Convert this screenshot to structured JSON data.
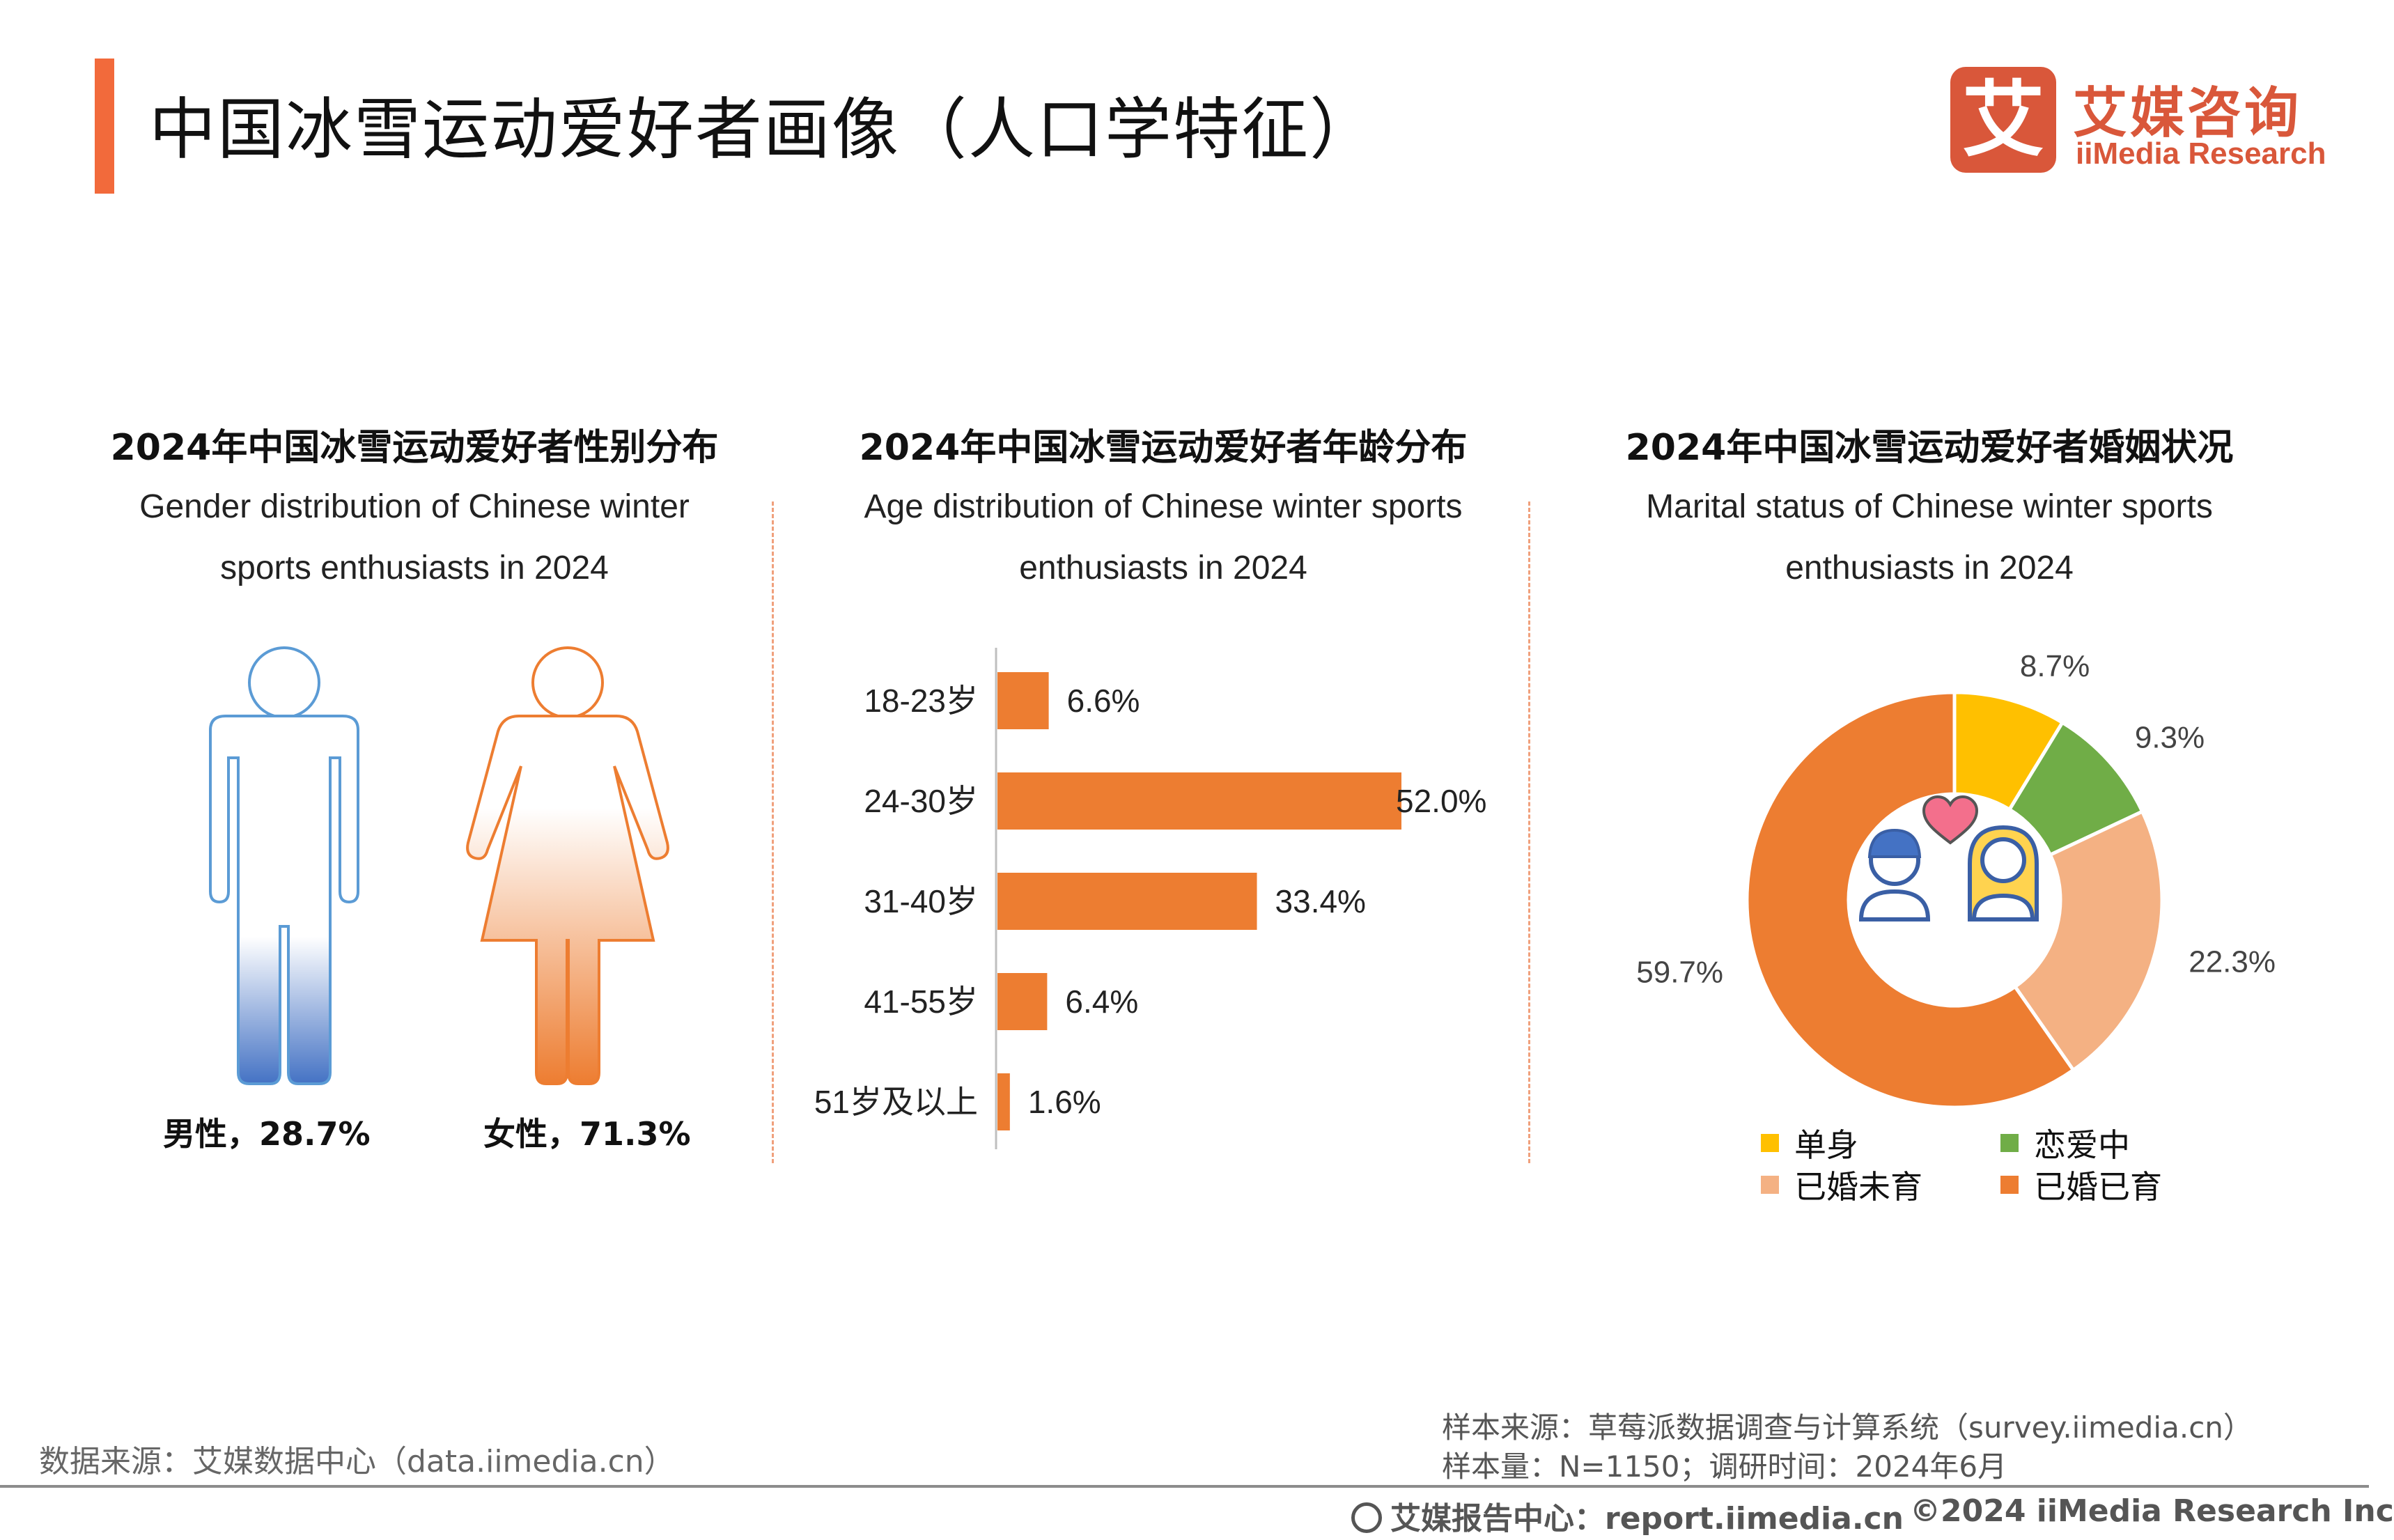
{
  "page": {
    "title": "中国冰雪运动爱好者画像（人口学特征）"
  },
  "logo": {
    "mark": "艾",
    "cn": "艾媒咨询",
    "en": "iiMedia Research"
  },
  "colors": {
    "accent": "#f26a3b",
    "bar": "#ed7d31",
    "male": "#4472c4",
    "single": "#ffc000",
    "in_love": "#70ad47",
    "married_no_child": "#f4b183",
    "married_child": "#ed7d31"
  },
  "panels": {
    "gender": {
      "title": "2024年中国冰雪运动爱好者性别分布",
      "subtitle1": "Gender distribution of Chinese winter",
      "subtitle2": "sports enthusiasts in 2024",
      "male_label": "男性，28.7%",
      "female_label": "女性，71.3%"
    },
    "age": {
      "title": "2024年中国冰雪运动爱好者年龄分布",
      "subtitle1": "Age distribution of Chinese winter sports",
      "subtitle2": "enthusiasts in 2024"
    },
    "marital": {
      "title": "2024年中国冰雪运动爱好者婚姻状况",
      "subtitle1": "Marital status of Chinese winter sports",
      "subtitle2": "enthusiasts in 2024"
    }
  },
  "chart_data": [
    {
      "type": "pictogram",
      "categories": [
        "男性",
        "女性"
      ],
      "values": [
        28.7,
        71.3
      ],
      "unit": "%"
    },
    {
      "type": "bar",
      "orientation": "horizontal",
      "categories": [
        "18-23岁",
        "24-30岁",
        "31-40岁",
        "41-55岁",
        "51岁及以上"
      ],
      "values": [
        6.6,
        52.0,
        33.4,
        6.4,
        1.6
      ],
      "labels": [
        "6.6%",
        "52.0%",
        "33.4%",
        "6.4%",
        "1.6%"
      ],
      "xlim": [
        0,
        52
      ]
    },
    {
      "type": "pie",
      "donut": true,
      "categories": [
        "单身",
        "恋爱中",
        "已婚未育",
        "已婚已育"
      ],
      "values": [
        8.7,
        9.3,
        22.3,
        59.7
      ],
      "labels": [
        "8.7%",
        "9.3%",
        "22.3%",
        "59.7%"
      ],
      "legend_position": "bottom"
    }
  ],
  "footer": {
    "source": "数据来源：艾媒数据中心（data.iimedia.cn）",
    "sample_source": "样本来源：草莓派数据调查与计算系统（survey.iimedia.cn）",
    "sample_size": "样本量：N=1150；调研时间：2024年6月",
    "report_center": "艾媒报告中心：report.iimedia.cn",
    "copyright": "©2024  iiMedia Research  Inc"
  }
}
